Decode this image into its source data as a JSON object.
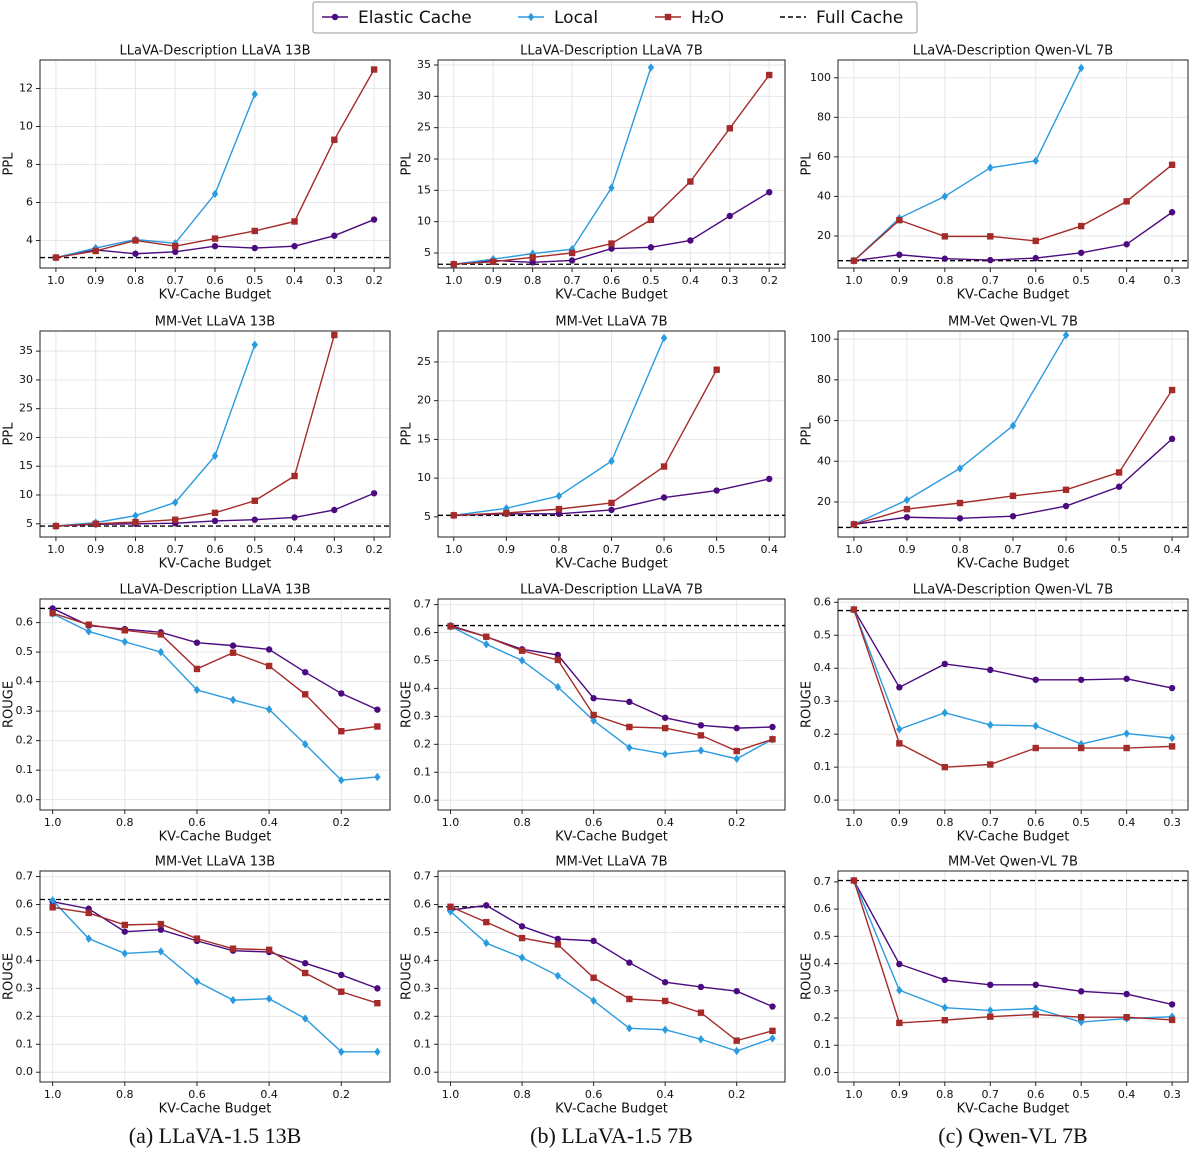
{
  "chart_data": [
    {
      "type": "line",
      "title": "LLaVA-Description LLaVA 13B",
      "x_label": "KV-Cache Budget",
      "y_label": "PPL",
      "categories": [
        "1.0",
        "0.9",
        "0.8",
        "0.7",
        "0.6",
        "0.5",
        "0.4",
        "0.3",
        "0.2"
      ],
      "ylim": [
        2.55,
        13.5
      ],
      "yticks": [
        4,
        6,
        8,
        10,
        12
      ],
      "grid": true,
      "series": [
        {
          "name": "Elastic Cache",
          "color": "#4b0a7f",
          "marker": "circle",
          "values": [
            3.1,
            3.5,
            3.3,
            3.4,
            3.7,
            3.6,
            3.7,
            4.25,
            5.1
          ]
        },
        {
          "name": "Local",
          "color": "#2b9be0",
          "marker": "diamond",
          "values": [
            3.1,
            3.6,
            4.05,
            3.85,
            6.45,
            11.7,
            null,
            null,
            null
          ]
        },
        {
          "name": "H₂O",
          "color": "#a52a2a",
          "marker": "square",
          "values": [
            3.1,
            3.45,
            4.0,
            3.7,
            4.1,
            4.5,
            5.0,
            9.3,
            13.0
          ]
        }
      ],
      "hline": {
        "name": "Full Cache",
        "value": 3.1,
        "color": "#000000"
      }
    },
    {
      "type": "line",
      "title": "LLaVA-Description LLaVA 7B",
      "x_label": "KV-Cache Budget",
      "y_label": "PPL",
      "categories": [
        "1.0",
        "0.9",
        "0.8",
        "0.7",
        "0.6",
        "0.5",
        "0.4",
        "0.3",
        "0.2"
      ],
      "ylim": [
        2.6,
        35.8
      ],
      "yticks": [
        5,
        10,
        15,
        20,
        25,
        30,
        35
      ],
      "grid": true,
      "series": [
        {
          "name": "Elastic Cache",
          "color": "#4b0a7f",
          "marker": "circle",
          "values": [
            3.2,
            3.8,
            3.5,
            3.8,
            5.7,
            5.9,
            7.0,
            10.9,
            14.7
          ]
        },
        {
          "name": "Local",
          "color": "#2b9be0",
          "marker": "diamond",
          "values": [
            3.2,
            4.0,
            4.9,
            5.6,
            15.4,
            34.6,
            null,
            null,
            null
          ]
        },
        {
          "name": "H₂O",
          "color": "#a52a2a",
          "marker": "square",
          "values": [
            3.2,
            3.6,
            4.3,
            5.0,
            6.5,
            10.3,
            16.4,
            24.9,
            33.4
          ]
        }
      ],
      "hline": {
        "name": "Full Cache",
        "value": 3.2,
        "color": "#000000"
      }
    },
    {
      "type": "line",
      "title": "LLaVA-Description Qwen-VL 7B",
      "x_label": "KV-Cache Budget",
      "y_label": "PPL",
      "categories": [
        "1.0",
        "0.9",
        "0.8",
        "0.7",
        "0.6",
        "0.5",
        "0.4",
        "0.3"
      ],
      "ylim": [
        3.8,
        109
      ],
      "yticks": [
        20,
        40,
        60,
        80,
        100
      ],
      "grid": true,
      "series": [
        {
          "name": "Elastic Cache",
          "color": "#4b0a7f",
          "marker": "circle",
          "values": [
            7.5,
            10.5,
            8.5,
            7.8,
            8.8,
            11.5,
            15.8,
            32
          ]
        },
        {
          "name": "Local",
          "color": "#2b9be0",
          "marker": "diamond",
          "values": [
            7.5,
            29,
            40,
            54.5,
            58,
            105,
            null,
            null
          ]
        },
        {
          "name": "H₂O",
          "color": "#a52a2a",
          "marker": "square",
          "values": [
            7.5,
            28,
            19.8,
            19.8,
            17.5,
            25,
            37.5,
            56
          ]
        }
      ],
      "hline": {
        "name": "Full Cache",
        "value": 7.5,
        "color": "#000000"
      }
    },
    {
      "type": "line",
      "title": "MM-Vet LLaVA 13B",
      "x_label": "KV-Cache Budget",
      "y_label": "PPL",
      "categories": [
        "1.0",
        "0.9",
        "0.8",
        "0.7",
        "0.6",
        "0.5",
        "0.4",
        "0.3",
        "0.2"
      ],
      "ylim": [
        2.7,
        38.5
      ],
      "yticks": [
        5,
        10,
        15,
        20,
        25,
        30,
        35
      ],
      "grid": true,
      "series": [
        {
          "name": "Elastic Cache",
          "color": "#4b0a7f",
          "marker": "circle",
          "values": [
            4.6,
            4.9,
            5.0,
            5.1,
            5.5,
            5.7,
            6.1,
            7.4,
            10.3
          ]
        },
        {
          "name": "Local",
          "color": "#2b9be0",
          "marker": "diamond",
          "values": [
            4.6,
            5.2,
            6.4,
            8.7,
            16.8,
            36.1,
            null,
            null,
            null
          ]
        },
        {
          "name": "H₂O",
          "color": "#a52a2a",
          "marker": "square",
          "values": [
            4.6,
            5.0,
            5.3,
            5.7,
            6.9,
            9.0,
            13.3,
            37.8,
            null
          ]
        }
      ],
      "hline": {
        "name": "Full Cache",
        "value": 4.6,
        "color": "#000000"
      }
    },
    {
      "type": "line",
      "title": "MM-Vet LLaVA 7B",
      "x_label": "KV-Cache Budget",
      "y_label": "PPL",
      "categories": [
        "1.0",
        "0.9",
        "0.8",
        "0.7",
        "0.6",
        "0.5",
        "0.4"
      ],
      "ylim": [
        2.4,
        29
      ],
      "yticks": [
        5,
        10,
        15,
        20,
        25
      ],
      "grid": true,
      "series": [
        {
          "name": "Elastic Cache",
          "color": "#4b0a7f",
          "marker": "circle",
          "values": [
            5.2,
            5.4,
            5.4,
            5.9,
            7.5,
            8.4,
            9.9
          ]
        },
        {
          "name": "Local",
          "color": "#2b9be0",
          "marker": "diamond",
          "values": [
            5.2,
            6.1,
            7.7,
            12.2,
            28.1,
            null,
            null
          ]
        },
        {
          "name": "H₂O",
          "color": "#a52a2a",
          "marker": "square",
          "values": [
            5.2,
            5.5,
            6.0,
            6.8,
            11.5,
            24.0,
            null
          ]
        }
      ],
      "hline": {
        "name": "Full Cache",
        "value": 5.2,
        "color": "#000000"
      }
    },
    {
      "type": "line",
      "title": "MM-Vet Qwen-VL 7B",
      "x_label": "KV-Cache Budget",
      "y_label": "PPL",
      "categories": [
        "1.0",
        "0.9",
        "0.8",
        "0.7",
        "0.6",
        "0.5",
        "0.4"
      ],
      "ylim": [
        2.8,
        104
      ],
      "yticks": [
        20,
        40,
        60,
        80,
        100
      ],
      "grid": true,
      "series": [
        {
          "name": "Elastic Cache",
          "color": "#4b0a7f",
          "marker": "circle",
          "values": [
            9,
            12.5,
            12,
            13,
            18,
            27.5,
            51
          ]
        },
        {
          "name": "Local",
          "color": "#2b9be0",
          "marker": "diamond",
          "values": [
            9,
            21,
            36.5,
            57.5,
            102,
            null,
            null
          ]
        },
        {
          "name": "H₂O",
          "color": "#a52a2a",
          "marker": "square",
          "values": [
            9,
            16.5,
            19.5,
            23,
            26,
            34.5,
            75
          ]
        }
      ],
      "hline": {
        "name": "Full Cache",
        "value": 7.5,
        "color": "#000000"
      }
    },
    {
      "type": "line",
      "title": "LLaVA-Description LLaVA 13B",
      "x_label": "KV-Cache Budget",
      "y_label": "ROUGE",
      "x": [
        1.0,
        0.9,
        0.8,
        0.7,
        0.6,
        0.5,
        0.4,
        0.3,
        0.2,
        0.1
      ],
      "xlim": [
        1.035,
        0.065
      ],
      "xticks": [
        {
          "value": 1,
          "label": "1.0"
        },
        0.8,
        0.6,
        0.4,
        0.2
      ],
      "ylim": [
        -0.035,
        0.68
      ],
      "yticks": [
        {
          "value": 0,
          "label": "0.0"
        },
        0.1,
        0.2,
        0.3,
        0.4,
        0.5,
        0.6
      ],
      "grid": true,
      "series": [
        {
          "name": "Elastic Cache",
          "color": "#4b0a7f",
          "marker": "circle",
          "values": [
            0.648,
            0.59,
            0.578,
            0.567,
            0.532,
            0.522,
            0.509,
            0.432,
            0.36,
            0.305
          ]
        },
        {
          "name": "Local",
          "color": "#2b9be0",
          "marker": "diamond",
          "values": [
            0.63,
            0.57,
            0.535,
            0.5,
            0.372,
            0.338,
            0.306,
            0.188,
            0.066,
            0.077
          ]
        },
        {
          "name": "H₂O",
          "color": "#a52a2a",
          "marker": "square",
          "values": [
            0.632,
            0.593,
            0.574,
            0.56,
            0.443,
            0.498,
            0.453,
            0.357,
            0.232,
            0.248
          ]
        }
      ],
      "hline": {
        "name": "Full Cache",
        "value": 0.648,
        "color": "#000000"
      }
    },
    {
      "type": "line",
      "title": "LLaVA-Description LLaVA 7B",
      "x_label": "KV-Cache Budget",
      "y_label": "ROUGE",
      "x": [
        1.0,
        0.9,
        0.8,
        0.7,
        0.6,
        0.5,
        0.4,
        0.3,
        0.2,
        0.1
      ],
      "xlim": [
        1.035,
        0.065
      ],
      "xticks": [
        {
          "value": 1,
          "label": "1.0"
        },
        0.8,
        0.6,
        0.4,
        0.2
      ],
      "ylim": [
        -0.035,
        0.72
      ],
      "yticks": [
        {
          "value": 0,
          "label": "0.0"
        },
        0.1,
        0.2,
        0.3,
        0.4,
        0.5,
        0.6,
        0.7
      ],
      "grid": true,
      "series": [
        {
          "name": "Elastic Cache",
          "color": "#4b0a7f",
          "marker": "circle",
          "values": [
            0.625,
            0.585,
            0.54,
            0.52,
            0.365,
            0.352,
            0.295,
            0.268,
            0.258,
            0.262
          ]
        },
        {
          "name": "Local",
          "color": "#2b9be0",
          "marker": "diamond",
          "values": [
            0.622,
            0.558,
            0.5,
            0.405,
            0.285,
            0.188,
            0.165,
            0.178,
            0.148,
            0.218
          ]
        },
        {
          "name": "H₂O",
          "color": "#a52a2a",
          "marker": "square",
          "values": [
            0.622,
            0.585,
            0.535,
            0.502,
            0.305,
            0.262,
            0.258,
            0.232,
            0.176,
            0.218
          ]
        }
      ],
      "hline": {
        "name": "Full Cache",
        "value": 0.625,
        "color": "#000000"
      }
    },
    {
      "type": "line",
      "title": "LLaVA-Description Qwen-VL 7B",
      "x_label": "KV-Cache Budget",
      "y_label": "ROUGE",
      "categories": [
        "1.0",
        "0.9",
        "0.8",
        "0.7",
        "0.6",
        "0.5",
        "0.4",
        "0.3"
      ],
      "ylim": [
        -0.03,
        0.61
      ],
      "yticks": [
        {
          "value": 0,
          "label": "0.0"
        },
        0.1,
        0.2,
        0.3,
        0.4,
        0.5,
        0.6
      ],
      "grid": true,
      "series": [
        {
          "name": "Elastic Cache",
          "color": "#4b0a7f",
          "marker": "circle",
          "values": [
            0.578,
            0.342,
            0.413,
            0.395,
            0.365,
            0.365,
            0.368,
            0.34
          ]
        },
        {
          "name": "Local",
          "color": "#2b9be0",
          "marker": "diamond",
          "values": [
            0.578,
            0.215,
            0.265,
            0.228,
            0.225,
            0.17,
            0.202,
            0.188
          ]
        },
        {
          "name": "H₂O",
          "color": "#a52a2a",
          "marker": "square",
          "values": [
            0.578,
            0.172,
            0.1,
            0.108,
            0.158,
            0.158,
            0.158,
            0.163
          ]
        }
      ],
      "hline": {
        "name": "Full Cache",
        "value": 0.575,
        "color": "#000000"
      }
    },
    {
      "type": "line",
      "title": "MM-Vet LLaVA 13B",
      "x_label": "KV-Cache Budget",
      "y_label": "ROUGE",
      "x": [
        1.0,
        0.9,
        0.8,
        0.7,
        0.6,
        0.5,
        0.4,
        0.3,
        0.2,
        0.1
      ],
      "xlim": [
        1.035,
        0.065
      ],
      "xticks": [
        {
          "value": 1,
          "label": "1.0"
        },
        0.8,
        0.6,
        0.4,
        0.2
      ],
      "ylim": [
        -0.035,
        0.72
      ],
      "yticks": [
        {
          "value": 0,
          "label": "0.0"
        },
        0.1,
        0.2,
        0.3,
        0.4,
        0.5,
        0.6,
        0.7
      ],
      "grid": true,
      "series": [
        {
          "name": "Elastic Cache",
          "color": "#4b0a7f",
          "marker": "circle",
          "values": [
            0.61,
            0.585,
            0.503,
            0.51,
            0.47,
            0.435,
            0.43,
            0.39,
            0.348,
            0.3
          ]
        },
        {
          "name": "Local",
          "color": "#2b9be0",
          "marker": "diamond",
          "values": [
            0.615,
            0.478,
            0.425,
            0.432,
            0.325,
            0.258,
            0.263,
            0.192,
            0.073,
            0.073
          ]
        },
        {
          "name": "H₂O",
          "color": "#a52a2a",
          "marker": "square",
          "values": [
            0.59,
            0.57,
            0.527,
            0.53,
            0.478,
            0.442,
            0.438,
            0.355,
            0.288,
            0.247
          ]
        }
      ],
      "hline": {
        "name": "Full Cache",
        "value": 0.618,
        "color": "#000000"
      }
    },
    {
      "type": "line",
      "title": "MM-Vet LLaVA 7B",
      "x_label": "KV-Cache Budget",
      "y_label": "ROUGE",
      "x": [
        1.0,
        0.9,
        0.8,
        0.7,
        0.6,
        0.5,
        0.4,
        0.3,
        0.2,
        0.1
      ],
      "xlim": [
        1.035,
        0.065
      ],
      "xticks": [
        {
          "value": 1,
          "label": "1.0"
        },
        0.8,
        0.6,
        0.4,
        0.2
      ],
      "ylim": [
        -0.035,
        0.72
      ],
      "yticks": [
        {
          "value": 0,
          "label": "0.0"
        },
        0.1,
        0.2,
        0.3,
        0.4,
        0.5,
        0.6,
        0.7
      ],
      "grid": true,
      "series": [
        {
          "name": "Elastic Cache",
          "color": "#4b0a7f",
          "marker": "circle",
          "values": [
            0.58,
            0.597,
            0.522,
            0.477,
            0.47,
            0.392,
            0.322,
            0.305,
            0.29,
            0.235
          ]
        },
        {
          "name": "Local",
          "color": "#2b9be0",
          "marker": "diamond",
          "values": [
            0.575,
            0.462,
            0.41,
            0.345,
            0.256,
            0.157,
            0.152,
            0.118,
            0.076,
            0.121
          ]
        },
        {
          "name": "H₂O",
          "color": "#a52a2a",
          "marker": "square",
          "values": [
            0.592,
            0.537,
            0.48,
            0.457,
            0.338,
            0.262,
            0.255,
            0.213,
            0.113,
            0.148
          ]
        }
      ],
      "hline": {
        "name": "Full Cache",
        "value": 0.592,
        "color": "#000000"
      }
    },
    {
      "type": "line",
      "title": "MM-Vet Qwen-VL 7B",
      "x_label": "KV-Cache Budget",
      "y_label": "ROUGE",
      "categories": [
        "1.0",
        "0.9",
        "0.8",
        "0.7",
        "0.6",
        "0.5",
        "0.4",
        "0.3"
      ],
      "ylim": [
        -0.035,
        0.74
      ],
      "yticks": [
        {
          "value": 0,
          "label": "0.0"
        },
        0.1,
        0.2,
        0.3,
        0.4,
        0.5,
        0.6,
        0.7
      ],
      "grid": true,
      "series": [
        {
          "name": "Elastic Cache",
          "color": "#4b0a7f",
          "marker": "circle",
          "values": [
            0.705,
            0.398,
            0.34,
            0.322,
            0.322,
            0.298,
            0.288,
            0.25
          ]
        },
        {
          "name": "Local",
          "color": "#2b9be0",
          "marker": "diamond",
          "values": [
            0.705,
            0.302,
            0.238,
            0.228,
            0.235,
            0.185,
            0.198,
            0.205
          ]
        },
        {
          "name": "H₂O",
          "color": "#a52a2a",
          "marker": "square",
          "values": [
            0.705,
            0.182,
            0.192,
            0.205,
            0.213,
            0.203,
            0.203,
            0.193
          ]
        }
      ],
      "hline": {
        "name": "Full Cache",
        "value": 0.705,
        "color": "#000000"
      }
    }
  ],
  "captions": [
    "(a) LLaVA-1.5  13B",
    "(b) LLaVA-1.5  7B",
    "(c) Qwen-VL 7B"
  ]
}
